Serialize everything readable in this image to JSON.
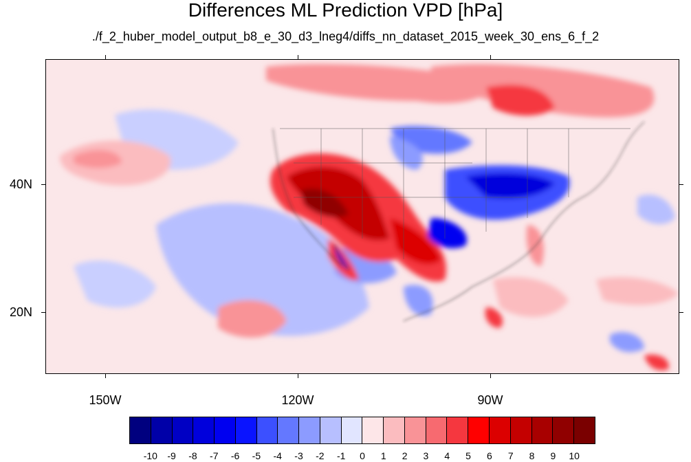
{
  "title": "Differences ML Prediction VPD [hPa]",
  "subtitle": "./f_2_huber_model_output_b8_e_30_d3_lneg4/diffs_nn_dataset_2015_week_30_ens_6_f_2",
  "axes": {
    "lat_labels": [
      "40N",
      "20N"
    ],
    "lon_labels": [
      "150W",
      "120W",
      "90W"
    ]
  },
  "colorbar": {
    "labels": [
      "-10",
      "-9",
      "-8",
      "-7",
      "-6",
      "-5",
      "-4",
      "-3",
      "-2",
      "-1",
      "0",
      "1",
      "2",
      "3",
      "4",
      "5",
      "6",
      "7",
      "8",
      "9",
      "10"
    ],
    "colors": [
      "#00007f",
      "#0000a8",
      "#0000c4",
      "#0000dc",
      "#0000f0",
      "#0a14ff",
      "#3c50ff",
      "#6478ff",
      "#8c9bff",
      "#b7bfff",
      "#e1e5ff",
      "#fde6e8",
      "#fbbcbf",
      "#f99397",
      "#f76a70",
      "#f5373f",
      "#ff0000",
      "#dc0000",
      "#c40000",
      "#a80000",
      "#900000",
      "#7a0000"
    ]
  },
  "colors": {
    "background_field": "#fbe7e9",
    "strong_positive": "#b00000",
    "strong_negative": "#0010e0"
  }
}
